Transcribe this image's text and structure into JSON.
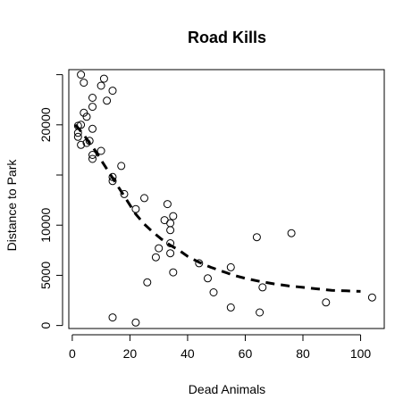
{
  "chart_data": {
    "type": "scatter",
    "title": "Road Kills",
    "xlabel": "Dead Animals",
    "ylabel": "Distance to Park",
    "xlim": [
      -1.2,
      108.2
    ],
    "ylim": [
      -300,
      25500
    ],
    "x_ticks": [
      0,
      20,
      40,
      60,
      80,
      100
    ],
    "y_ticks": [
      0,
      5000,
      10000,
      15000,
      20000,
      25000
    ],
    "y_tick_labels": [
      "0",
      "5000",
      "10000",
      "",
      "20000",
      ""
    ],
    "grid": false,
    "legend": "none",
    "points": {
      "x": [
        3,
        4,
        11,
        10,
        14,
        7,
        12,
        7,
        4,
        5,
        2,
        3,
        7,
        2,
        2,
        5,
        6,
        3,
        10,
        7,
        7,
        17,
        14,
        14,
        18,
        25,
        22,
        33,
        35,
        34,
        32,
        34,
        34,
        30,
        34,
        29,
        35,
        26,
        44,
        47,
        55,
        49,
        64,
        76,
        55,
        66,
        65,
        88,
        104,
        14,
        22
      ],
      "y": [
        25000,
        24200,
        24600,
        23900,
        23400,
        22700,
        22400,
        21800,
        21200,
        20800,
        19900,
        20000,
        19600,
        19200,
        18800,
        18200,
        18400,
        18000,
        17400,
        17000,
        16600,
        15900,
        14800,
        14400,
        13100,
        12700,
        11600,
        12100,
        10900,
        10200,
        10500,
        9500,
        8200,
        7700,
        7200,
        6800,
        5300,
        4300,
        6200,
        4700,
        5800,
        3300,
        8800,
        9200,
        1800,
        3800,
        1300,
        2300,
        2800,
        800,
        300
      ]
    },
    "fit_line": {
      "style": "dashed",
      "x": [
        1,
        2,
        4,
        6,
        8,
        10,
        12,
        14,
        16,
        18,
        20,
        22,
        25,
        28,
        31,
        34,
        37,
        40,
        44,
        48,
        52,
        56,
        60,
        65,
        70,
        75,
        80,
        85,
        90,
        95,
        100
      ],
      "y": [
        20000,
        19700,
        19000,
        18200,
        17400,
        16500,
        15600,
        14700,
        13800,
        12900,
        12000,
        11100,
        10100,
        9300,
        8600,
        8000,
        7500,
        6900,
        6300,
        5800,
        5400,
        5000,
        4700,
        4400,
        4150,
        3950,
        3800,
        3650,
        3500,
        3450,
        3400
      ]
    }
  }
}
